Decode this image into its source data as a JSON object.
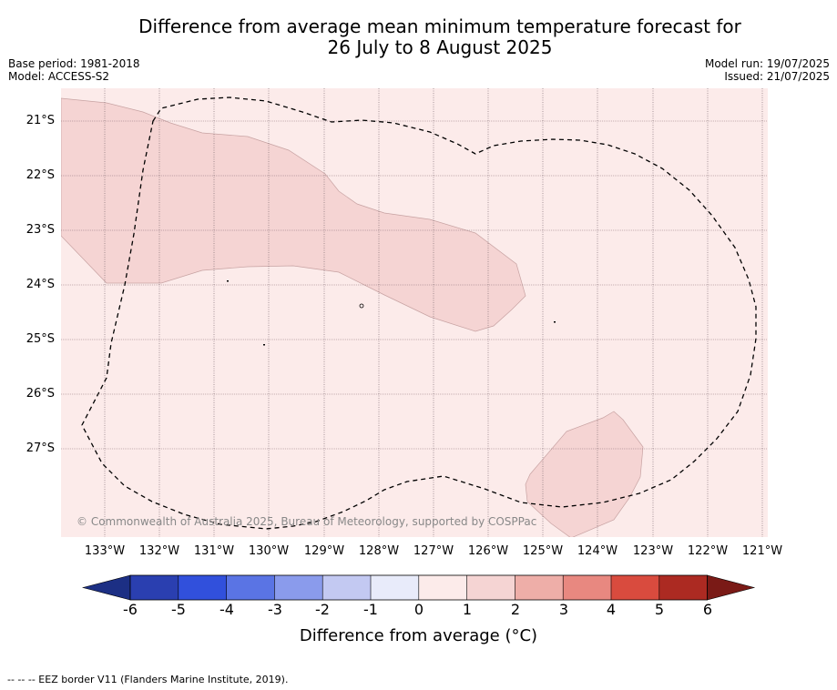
{
  "title": {
    "line1": "Difference from average mean minimum temperature forecast for",
    "line2": "26 July to 8 August 2025"
  },
  "meta_left": {
    "base_period": "Base period: 1981-2018",
    "model": "Model: ACCESS-S2"
  },
  "meta_right": {
    "model_run": "Model run: 19/07/2025",
    "issued": "Issued: 21/07/2025"
  },
  "map": {
    "latitude_labels": [
      "21°S",
      "22°S",
      "23°S",
      "24°S",
      "25°S",
      "26°S",
      "27°S"
    ],
    "longitude_labels": [
      "133°W",
      "132°W",
      "131°W",
      "130°W",
      "129°W",
      "128°W",
      "127°W",
      "126°W",
      "125°W",
      "124°W",
      "123°W",
      "122°W",
      "121°W"
    ],
    "copyright": "© Commonwealth of Australia 2025, Bureau of Meteorology, supported by COSPPac",
    "background_category": "0 to 1",
    "anomaly_regions_category": "1 to 2"
  },
  "colorbar": {
    "ticks": [
      "-6",
      "-5",
      "-4",
      "-3",
      "-2",
      "-1",
      "0",
      "1",
      "2",
      "3",
      "4",
      "5",
      "6"
    ],
    "colors": [
      "#1c2f84",
      "#2a3fb0",
      "#3150dc",
      "#5a74e4",
      "#8a9bec",
      "#c3c9f2",
      "#e8ebfa",
      "#fcebea",
      "#f5d4d3",
      "#eeaea8",
      "#e88880",
      "#d94b3e",
      "#ac2a22",
      "#7a1a16"
    ],
    "label": "Difference from average (°C)"
  },
  "footer": {
    "note": "--  --  -- EEZ border V11 (Flanders Marine Institute, 2019)."
  }
}
